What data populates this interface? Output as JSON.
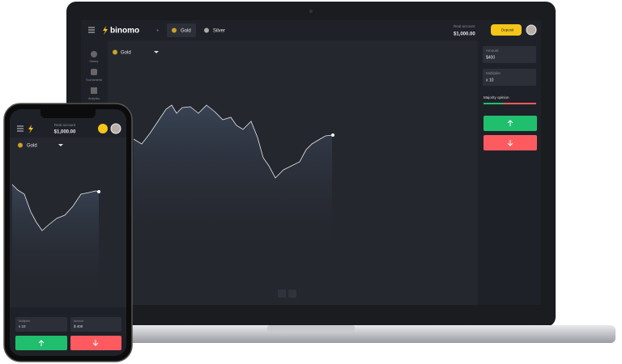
{
  "laptop": {
    "logo": "binomo",
    "tabs": [
      "Gold",
      "Silver"
    ],
    "account": {
      "label": "Real account",
      "balance": "$1,000.00"
    },
    "deposit": "Deposit",
    "sidebar": [
      "History",
      "Tournaments",
      "Analytics"
    ],
    "asset": "Gold",
    "amount": {
      "label": "Amount",
      "value": "$400"
    },
    "multiplier": {
      "label": "Multiplier",
      "value": "x 10"
    },
    "majority": "Majority opinion"
  },
  "phone": {
    "account": {
      "label": "Real account",
      "balance": "$1,000.00"
    },
    "asset": "Gold",
    "multiplier": {
      "label": "Multiplier",
      "value": "x 10"
    },
    "amount": {
      "label": "Amount",
      "value": "$ 400"
    }
  }
}
